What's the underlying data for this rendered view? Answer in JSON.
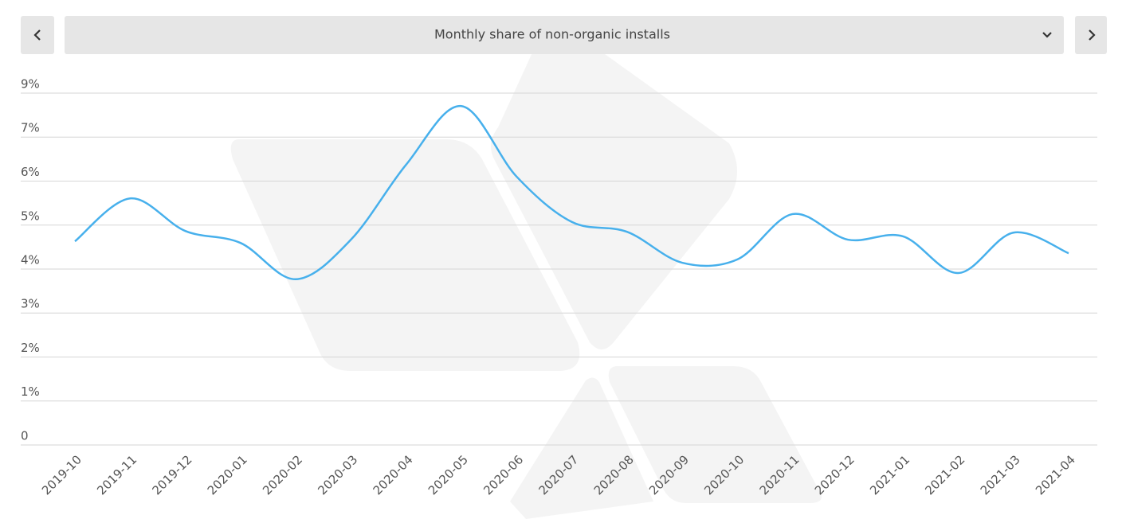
{
  "chart_data": {
    "type": "line",
    "title": "Monthly share of non-organic installs",
    "categories": [
      "2019-10",
      "2019-11",
      "2019-12",
      "2020-01",
      "2020-02",
      "2020-03",
      "2020-04",
      "2020-05",
      "2020-06",
      "2020-07",
      "2020-08",
      "2020-09",
      "2020-10",
      "2020-11",
      "2020-12",
      "2021-01",
      "2021-02",
      "2021-03",
      "2021-04"
    ],
    "series": [
      {
        "color": "#47b0ec",
        "values": [
          4.94,
          5.98,
          5.19,
          4.9,
          4.02,
          4.98,
          6.8,
          8.22,
          6.51,
          5.41,
          5.17,
          4.42,
          4.5,
          5.6,
          4.98,
          5.06,
          4.17,
          5.15,
          4.65
        ]
      }
    ],
    "ylim": [
      0,
      8.5333
    ],
    "yticks": [
      0,
      {
        "value": 1.0667,
        "label": "1%"
      },
      {
        "value": 2.1333,
        "label": "2%"
      },
      {
        "value": 3.2,
        "label": "3%"
      },
      {
        "value": 4.2667,
        "label": "4%"
      },
      {
        "value": 5.3333,
        "label": "5%"
      },
      {
        "value": 6.4,
        "label": "6%"
      },
      {
        "value": 7.4667,
        "label": "7%"
      },
      {
        "value": 8.5333,
        "label": "9%"
      }
    ],
    "grid": true
  }
}
